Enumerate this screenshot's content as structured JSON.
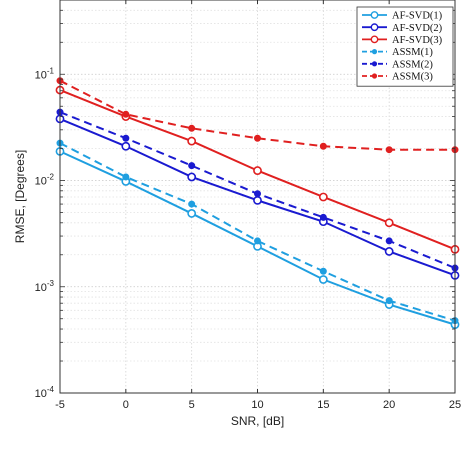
{
  "chart_data": {
    "type": "line",
    "xlabel": "SNR, [dB]",
    "ylabel": "RMSE, [Degrees]",
    "x_scale": "linear",
    "y_scale": "log",
    "xlim": [
      -5,
      25
    ],
    "ylim": [
      0.0001,
      0.5
    ],
    "x": [
      -5,
      0,
      5,
      10,
      15,
      20,
      25
    ],
    "x_tick_labels": [
      "-5",
      "0",
      "5",
      "10",
      "15",
      "20",
      "25"
    ],
    "y_ticks": [
      {
        "value": 0.1,
        "base": "10",
        "exp": "-1"
      },
      {
        "value": 0.01,
        "base": "10",
        "exp": "-2"
      },
      {
        "value": 0.001,
        "base": "10",
        "exp": "-3"
      },
      {
        "value": 0.0001,
        "base": "10",
        "exp": "-4"
      }
    ],
    "grid": true,
    "legend_position": "top-right",
    "series": [
      {
        "name": "AF-SVD(1)",
        "color": "#1f9fe0",
        "dash": "solid",
        "marker": "circle-open",
        "values": [
          0.0188,
          0.0098,
          0.0049,
          0.0024,
          0.00117,
          0.00068,
          0.00044
        ]
      },
      {
        "name": "AF-SVD(2)",
        "color": "#1a1ad0",
        "dash": "solid",
        "marker": "circle-open",
        "values": [
          0.038,
          0.021,
          0.0108,
          0.0065,
          0.0041,
          0.00215,
          0.00128
        ]
      },
      {
        "name": "AF-SVD(3)",
        "color": "#e02020",
        "dash": "solid",
        "marker": "circle-open",
        "values": [
          0.071,
          0.04,
          0.0235,
          0.0124,
          0.007,
          0.004,
          0.00225
        ]
      },
      {
        "name": "ASSM(1)",
        "color": "#1f9fe0",
        "dash": "dashed",
        "marker": "dot",
        "values": [
          0.0225,
          0.0108,
          0.006,
          0.0027,
          0.0014,
          0.00074,
          0.00048
        ]
      },
      {
        "name": "ASSM(2)",
        "color": "#1a1ad0",
        "dash": "dashed",
        "marker": "dot",
        "values": [
          0.044,
          0.025,
          0.0138,
          0.0075,
          0.0045,
          0.0027,
          0.0015
        ]
      },
      {
        "name": "ASSM(3)",
        "color": "#e02020",
        "dash": "dashed",
        "marker": "dot",
        "values": [
          0.087,
          0.042,
          0.031,
          0.025,
          0.021,
          0.0195,
          0.0195
        ]
      }
    ]
  }
}
